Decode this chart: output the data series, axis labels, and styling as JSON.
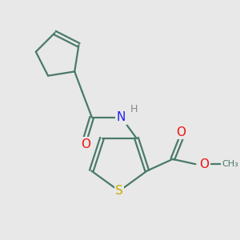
{
  "background_color": "#e8e8e8",
  "bond_color": "#4a7a6a",
  "bond_width": 1.6,
  "atom_colors": {
    "O": "#ee1111",
    "N": "#2222ee",
    "S": "#ccaa00",
    "H": "#888888",
    "C": "#4a7a6a"
  }
}
